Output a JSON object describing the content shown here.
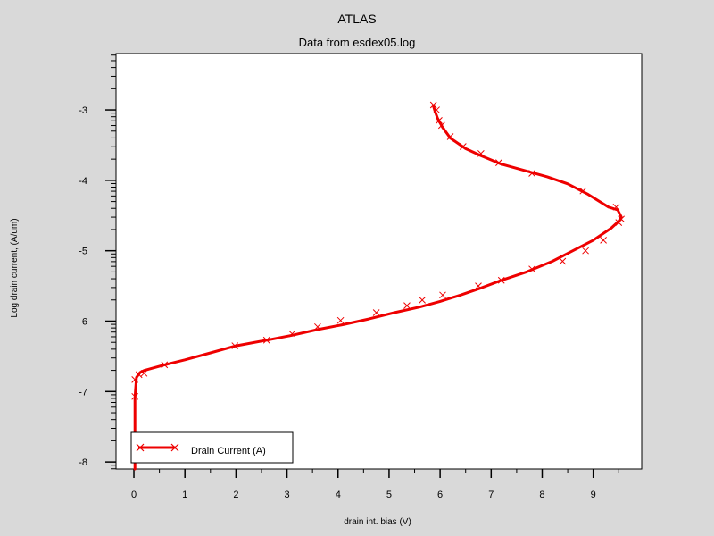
{
  "chart_data": {
    "type": "line",
    "title": "ATLAS",
    "subtitle": "Data from esdex05.log",
    "xlabel": "drain int. bias (V)",
    "ylabel": "Log drain current, (A/um)",
    "x_ticks": [
      "0",
      "1",
      "2",
      "3",
      "4",
      "5",
      "6",
      "7",
      "8",
      "9"
    ],
    "y_ticks": [
      "-3",
      "-4",
      "-5",
      "-6",
      "-7",
      "-8"
    ],
    "xlim": [
      -0.35,
      9.95
    ],
    "ylim": [
      -8.1,
      -2.2
    ],
    "grid": false,
    "legend_position": "bottom-left",
    "series": [
      {
        "name": "Drain Current (A)",
        "color": "#ee0000",
        "marker": "x",
        "x": [
          0.02,
          0.02,
          0.02,
          0.02,
          0.02,
          0.02,
          0.02,
          0.02,
          0.03,
          0.05,
          0.12,
          0.2,
          0.6,
          1.0,
          1.5,
          2.0,
          2.6,
          3.1,
          3.6,
          4.1,
          4.6,
          5.1,
          5.6,
          6.0,
          6.4,
          6.8,
          7.2,
          7.7,
          8.2,
          8.6,
          9.0,
          9.35,
          9.5,
          9.55,
          9.48,
          9.3,
          8.9,
          8.5,
          8.1,
          7.7,
          7.2,
          6.8,
          6.5,
          6.2,
          6.05,
          5.95,
          5.9,
          5.87
        ],
        "y": [
          -8.1,
          -7.9,
          -7.7,
          -7.55,
          -7.4,
          -7.3,
          -7.2,
          -7.1,
          -7.0,
          -6.8,
          -6.73,
          -6.7,
          -6.62,
          -6.55,
          -6.45,
          -6.35,
          -6.27,
          -6.2,
          -6.12,
          -6.05,
          -5.97,
          -5.88,
          -5.8,
          -5.72,
          -5.63,
          -5.53,
          -5.42,
          -5.3,
          -5.15,
          -5.0,
          -4.85,
          -4.68,
          -4.58,
          -4.52,
          -4.42,
          -4.38,
          -4.2,
          -4.05,
          -3.95,
          -3.87,
          -3.77,
          -3.65,
          -3.55,
          -3.4,
          -3.25,
          -3.12,
          -3.02,
          -2.95
        ],
        "markers_x": [
          0.02,
          0.02,
          0.1,
          0.2,
          0.6,
          1.98,
          2.6,
          3.1,
          3.6,
          4.05,
          4.75,
          5.35,
          5.65,
          6.05,
          6.75,
          7.2,
          7.8,
          8.4,
          8.85,
          9.2,
          9.5,
          9.55,
          9.45,
          8.8,
          7.8,
          7.15,
          6.8,
          6.45,
          6.2,
          6.03,
          5.98,
          5.93,
          5.87
        ],
        "markers_y": [
          -7.07,
          -6.83,
          -6.76,
          -6.74,
          -6.62,
          -6.35,
          -6.27,
          -6.18,
          -6.08,
          -5.99,
          -5.88,
          -5.78,
          -5.7,
          -5.63,
          -5.5,
          -5.42,
          -5.26,
          -5.15,
          -5.0,
          -4.85,
          -4.6,
          -4.55,
          -4.38,
          -4.15,
          -3.9,
          -3.75,
          -3.62,
          -3.52,
          -3.38,
          -3.22,
          -3.15,
          -3.0,
          -2.93
        ]
      }
    ]
  }
}
